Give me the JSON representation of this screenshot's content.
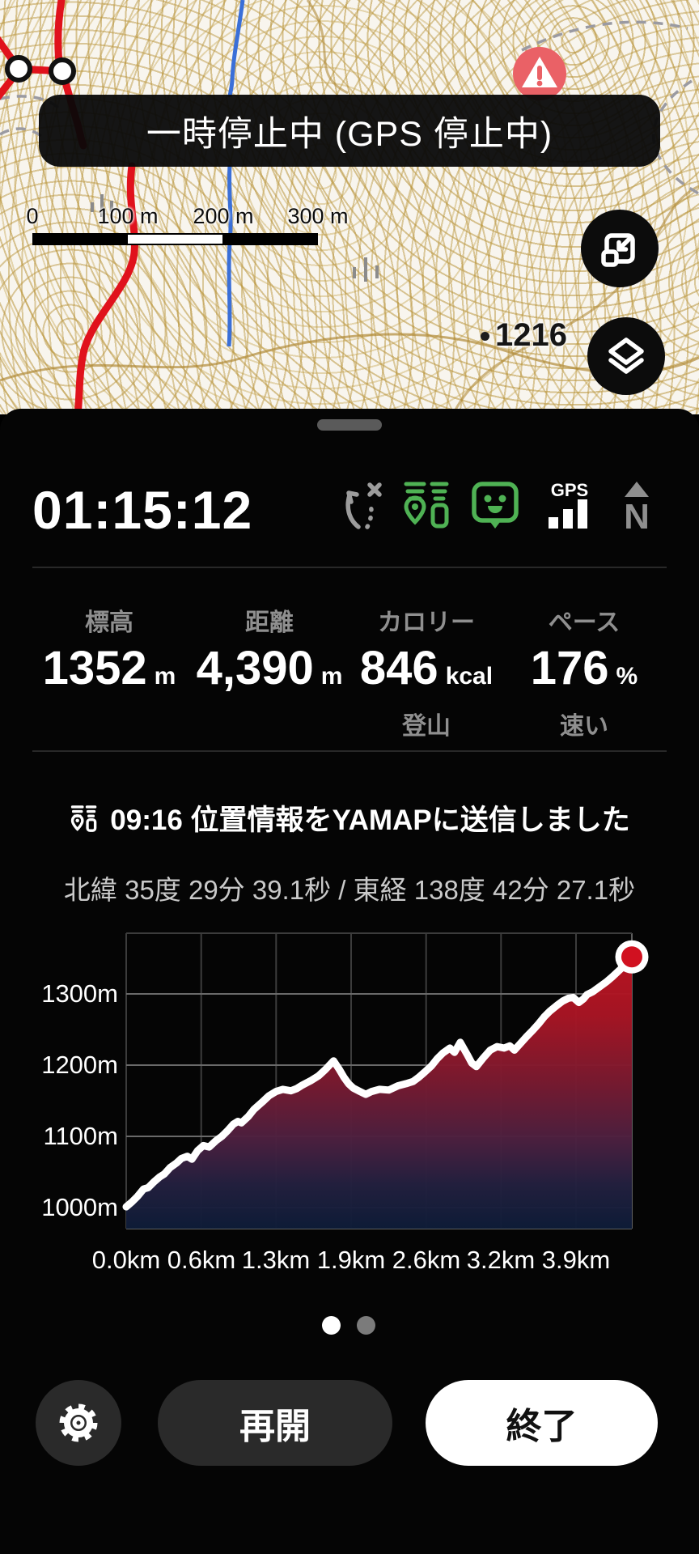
{
  "map": {
    "banner_text": "一時停止中 (GPS 停止中)",
    "scale_labels": [
      "0",
      "100 m",
      "200 m",
      "300 m"
    ],
    "peak_label": "1216",
    "colors": {
      "trail": "#e0121c",
      "stream": "#3a6fd8",
      "warning": "#ea6166",
      "contour": "#b8923c"
    }
  },
  "panel": {
    "timer": "01:15:12",
    "gps_label": "GPS",
    "north_label": "N",
    "icon_green": "#4fb254",
    "stats": [
      {
        "label": "標高",
        "value": "1352",
        "unit": "m",
        "sub": ""
      },
      {
        "label": "距離",
        "value": "4,390",
        "unit": "m",
        "sub": ""
      },
      {
        "label": "カロリー",
        "value": "846",
        "unit": "kcal",
        "sub": "登山"
      },
      {
        "label": "ペース",
        "value": "176",
        "unit": "%",
        "sub": "速い"
      }
    ],
    "message": "09:16 位置情報をYAMAPに送信しました",
    "coordinates": "北緯 35度 29分 39.1秒 / 東経 138度 42分 27.1秒",
    "resume_label": "再開",
    "end_label": "終了"
  },
  "chart_data": {
    "type": "area",
    "title": "",
    "xlabel": "",
    "ylabel": "",
    "x_ticks": [
      "0.0km",
      "0.6km",
      "1.3km",
      "1.9km",
      "2.6km",
      "3.2km",
      "3.9km"
    ],
    "y_ticks": [
      "1300m",
      "1200m",
      "1100m",
      "1000m"
    ],
    "xlim": [
      0,
      4.39
    ],
    "ylim": [
      970,
      1385
    ],
    "grid": true,
    "line_color": "#ffffff",
    "marker_color": "#d11120",
    "profile": [
      [
        0,
        1001
      ],
      [
        0.05,
        1008
      ],
      [
        0.1,
        1016
      ],
      [
        0.15,
        1026
      ],
      [
        0.19,
        1028
      ],
      [
        0.24,
        1036
      ],
      [
        0.29,
        1043
      ],
      [
        0.33,
        1047
      ],
      [
        0.38,
        1056
      ],
      [
        0.44,
        1063
      ],
      [
        0.48,
        1069
      ],
      [
        0.53,
        1072
      ],
      [
        0.57,
        1068
      ],
      [
        0.62,
        1080
      ],
      [
        0.67,
        1087
      ],
      [
        0.72,
        1085
      ],
      [
        0.78,
        1094
      ],
      [
        0.83,
        1100
      ],
      [
        0.88,
        1108
      ],
      [
        0.93,
        1117
      ],
      [
        0.97,
        1121
      ],
      [
        1.0,
        1119
      ],
      [
        1.06,
        1128
      ],
      [
        1.11,
        1138
      ],
      [
        1.18,
        1148
      ],
      [
        1.24,
        1157
      ],
      [
        1.3,
        1163
      ],
      [
        1.36,
        1166
      ],
      [
        1.43,
        1164
      ],
      [
        1.48,
        1167
      ],
      [
        1.53,
        1172
      ],
      [
        1.6,
        1178
      ],
      [
        1.67,
        1185
      ],
      [
        1.73,
        1194
      ],
      [
        1.8,
        1206
      ],
      [
        1.85,
        1194
      ],
      [
        1.89,
        1183
      ],
      [
        1.93,
        1174
      ],
      [
        1.97,
        1168
      ],
      [
        2.03,
        1163
      ],
      [
        2.08,
        1159
      ],
      [
        2.13,
        1163
      ],
      [
        2.2,
        1166
      ],
      [
        2.28,
        1165
      ],
      [
        2.36,
        1171
      ],
      [
        2.43,
        1174
      ],
      [
        2.49,
        1177
      ],
      [
        2.54,
        1183
      ],
      [
        2.59,
        1190
      ],
      [
        2.65,
        1199
      ],
      [
        2.7,
        1209
      ],
      [
        2.75,
        1217
      ],
      [
        2.81,
        1224
      ],
      [
        2.85,
        1218
      ],
      [
        2.9,
        1232
      ],
      [
        2.96,
        1215
      ],
      [
        3.0,
        1203
      ],
      [
        3.04,
        1198
      ],
      [
        3.1,
        1210
      ],
      [
        3.16,
        1221
      ],
      [
        3.22,
        1226
      ],
      [
        3.28,
        1224
      ],
      [
        3.33,
        1227
      ],
      [
        3.37,
        1221
      ],
      [
        3.42,
        1230
      ],
      [
        3.47,
        1239
      ],
      [
        3.53,
        1249
      ],
      [
        3.58,
        1258
      ],
      [
        3.63,
        1268
      ],
      [
        3.68,
        1276
      ],
      [
        3.74,
        1284
      ],
      [
        3.79,
        1290
      ],
      [
        3.84,
        1294
      ],
      [
        3.88,
        1295
      ],
      [
        3.93,
        1288
      ],
      [
        3.97,
        1293
      ],
      [
        4.0,
        1299
      ],
      [
        4.05,
        1303
      ],
      [
        4.11,
        1310
      ],
      [
        4.17,
        1317
      ],
      [
        4.22,
        1324
      ],
      [
        4.28,
        1333
      ],
      [
        4.34,
        1342
      ],
      [
        4.39,
        1352
      ]
    ]
  }
}
